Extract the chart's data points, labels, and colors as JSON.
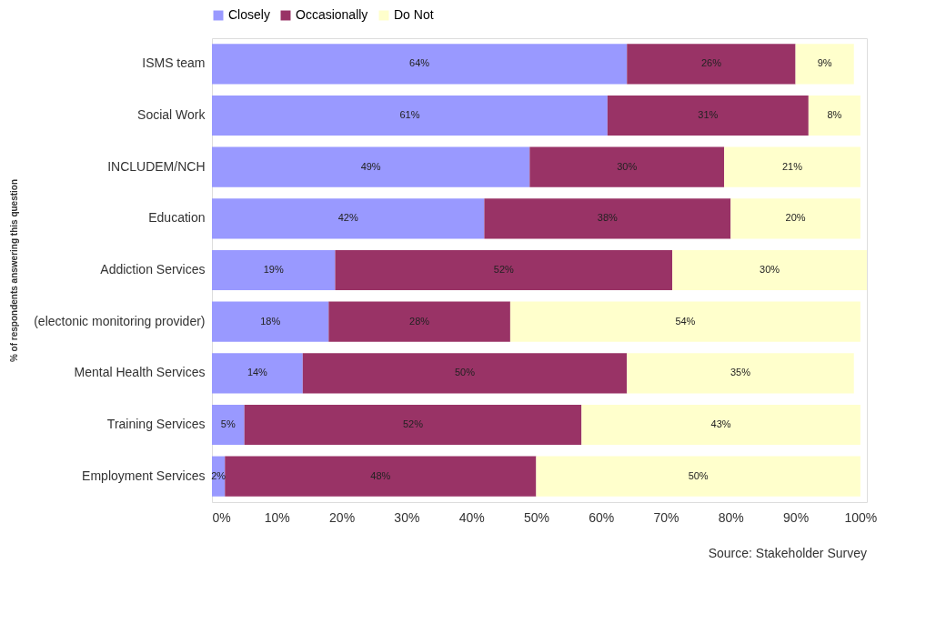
{
  "chart_data": {
    "type": "bar",
    "orientation": "horizontal",
    "stacked": true,
    "ylabel": "% of respondents answering this question",
    "categories": [
      "ISMS team",
      "Social Work",
      "INCLUDEM/NCH",
      "Education",
      "Addiction Services",
      "(electonic monitoring provider)",
      "Mental Health Services",
      "Training Services",
      "Employment Services"
    ],
    "series": [
      {
        "name": "Closely",
        "color": "#9999ff",
        "values": [
          64,
          61,
          49,
          42,
          19,
          18,
          14,
          5,
          2
        ],
        "value_labels": [
          "64%",
          "61%",
          "49%",
          "42%",
          "19%",
          "18%",
          "14%",
          "5%",
          "2%"
        ]
      },
      {
        "name": "Occasionally",
        "color": "#993366",
        "values": [
          26,
          31,
          30,
          38,
          52,
          28,
          50,
          52,
          48
        ],
        "value_labels": [
          "26%",
          "31%",
          "30%",
          "38%",
          "52%",
          "28%",
          "50%",
          "52%",
          "48%"
        ]
      },
      {
        "name": "Do Not",
        "color": "#ffffcc",
        "values": [
          9,
          8,
          21,
          20,
          30,
          54,
          35,
          43,
          50
        ],
        "value_labels": [
          "9%",
          "8%",
          "21%",
          "20%",
          "30%",
          "54%",
          "35%",
          "43%",
          "50%"
        ]
      }
    ],
    "xlim": [
      0,
      101
    ],
    "xticks": [
      {
        "value": 0,
        "label": "0%"
      },
      {
        "value": 10,
        "label": "10%"
      },
      {
        "value": 20,
        "label": "20%"
      },
      {
        "value": 30,
        "label": "30%"
      },
      {
        "value": 40,
        "label": "40%"
      },
      {
        "value": 50,
        "label": "50%"
      },
      {
        "value": 60,
        "label": "60%"
      },
      {
        "value": 70,
        "label": "70%"
      },
      {
        "value": 80,
        "label": "80%"
      },
      {
        "value": 90,
        "label": "90%"
      },
      {
        "value": 100,
        "label": "100%"
      }
    ],
    "grid": false,
    "legend": "top",
    "annotations": [
      "Source: Stakeholder Survey"
    ]
  }
}
